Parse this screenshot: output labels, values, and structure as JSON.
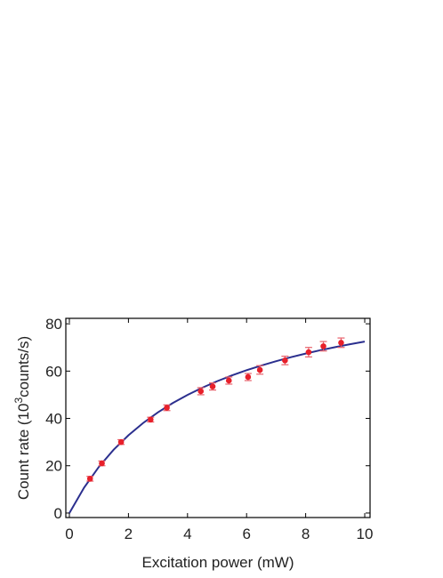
{
  "chart_data": {
    "type": "scatter",
    "xlabel": "Excitation power (mW)",
    "ylabel": [
      "Count rate (10",
      "3",
      "counts/s)"
    ],
    "xlim": [
      -0.12,
      10.18
    ],
    "ylim": [
      -1.9,
      82.3
    ],
    "xticks": [
      0,
      2,
      4,
      6,
      8,
      10
    ],
    "yticks": [
      0,
      20,
      40,
      60,
      80
    ],
    "series": [
      {
        "type": "scatter",
        "color": "#e8202a",
        "errcolor": "#e8606a",
        "x": [
          0.7,
          1.1,
          1.75,
          2.75,
          3.3,
          4.45,
          4.85,
          5.4,
          6.05,
          6.45,
          7.3,
          8.1,
          8.6,
          9.2
        ],
        "values": [
          14.5,
          21,
          30,
          39.5,
          44.5,
          51.5,
          53.5,
          56,
          57.5,
          60.5,
          64.5,
          68,
          70.5,
          72
        ],
        "errors": [
          1,
          1,
          1,
          1,
          1.2,
          1.5,
          1.5,
          1.5,
          1.5,
          1.8,
          1.8,
          2,
          2,
          2
        ]
      },
      {
        "type": "line",
        "color": "#2b2f8e",
        "x": [
          0,
          0.5,
          1,
          1.5,
          2,
          2.5,
          3,
          3.5,
          4,
          4.5,
          5,
          5.5,
          6,
          6.5,
          7,
          7.5,
          8,
          8.5,
          9,
          9.5,
          10
        ],
        "values": [
          0,
          10.79,
          19.54,
          26.79,
          32.88,
          38.09,
          42.58,
          46.49,
          49.93,
          52.99,
          55.71,
          58.16,
          60.37,
          62.37,
          64.2,
          65.87,
          67.41,
          68.83,
          70.14,
          71.35,
          72.48
        ]
      }
    ]
  }
}
